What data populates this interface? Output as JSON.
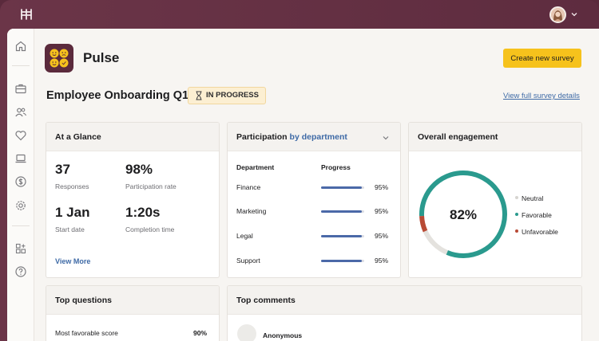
{
  "app": {
    "name": "Pulse",
    "create_button": "Create new survey"
  },
  "survey": {
    "title": "Employee Onboarding Q1",
    "status": "IN PROGRESS",
    "view_details": "View full survey details"
  },
  "nav": {
    "icons": [
      "home-icon",
      "briefcase-icon",
      "people-icon",
      "heart-icon",
      "laptop-icon",
      "dollar-icon",
      "settings-icon",
      "apps-icon",
      "help-icon"
    ]
  },
  "glance": {
    "title": "At a Glance",
    "stats": [
      {
        "value": "37",
        "label": "Responses"
      },
      {
        "value": "98%",
        "label": "Participation rate"
      },
      {
        "value": "1 Jan",
        "label": "Start date"
      },
      {
        "value": "1:20s",
        "label": "Completion time"
      }
    ],
    "view_more": "View More"
  },
  "participation": {
    "title": "Participation",
    "title_accent": "by department",
    "col_department": "Department",
    "col_progress": "Progress",
    "rows": [
      {
        "department": "Finance",
        "progress": 95,
        "label": "95%"
      },
      {
        "department": "Marketing",
        "progress": 95,
        "label": "95%"
      },
      {
        "department": "Legal",
        "progress": 95,
        "label": "95%"
      },
      {
        "department": "Support",
        "progress": 95,
        "label": "95%"
      }
    ]
  },
  "engagement": {
    "title": "Overall engagement",
    "value": "82%",
    "segments": [
      {
        "name": "Neutral",
        "percent": 12,
        "color": "#e4e2de"
      },
      {
        "name": "Favorable",
        "percent": 82,
        "color": "#2a9a8e"
      },
      {
        "name": "Unfavorable",
        "percent": 6,
        "color": "#b84a35"
      }
    ]
  },
  "top_questions": {
    "title": "Top questions",
    "row_label": "Most favorable score",
    "row_value": "90%"
  },
  "top_comments": {
    "title": "Top comments",
    "author": "Anonymous"
  },
  "colors": {
    "brand": "#5b2a3c",
    "accent_yellow": "#f6c21c",
    "link_blue": "#3e6aa6"
  }
}
